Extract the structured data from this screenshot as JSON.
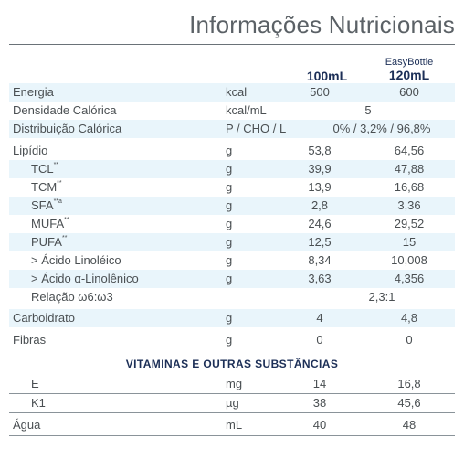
{
  "title": "Informações Nutricionais",
  "columns": {
    "easybottle": "EasyBottle",
    "col1": "100mL",
    "col2": "120mL"
  },
  "rows": [
    {
      "label": "Energia",
      "unit": "kcal",
      "v1": "500",
      "v2": "600"
    },
    {
      "label": "Densidade Calórica",
      "unit": "kcal/mL",
      "span": "5"
    },
    {
      "label": "Distribuição Calórica",
      "unit": "P / CHO / L",
      "span": "0% / 3,2% / 96,8%"
    },
    {
      "label": "Lipídio",
      "unit": "g",
      "v1": "53,8",
      "v2": "64,56"
    },
    {
      "label": "TCL",
      "sup": "**",
      "unit": "g",
      "v1": "39,9",
      "v2": "47,88"
    },
    {
      "label": "TCM",
      "sup": "**",
      "unit": "g",
      "v1": "13,9",
      "v2": "16,68"
    },
    {
      "label": "SFA",
      "sup": "**a",
      "unit": "g",
      "v1": "2,8",
      "v2": "3,36"
    },
    {
      "label": "MUFA",
      "sup": "**",
      "unit": "g",
      "v1": "24,6",
      "v2": "29,52"
    },
    {
      "label": "PUFA",
      "sup": "**",
      "unit": "g",
      "v1": "12,5",
      "v2": "15"
    },
    {
      "label": "> Ácido Linoléico",
      "unit": "g",
      "v1": "8,34",
      "v2": "10,008"
    },
    {
      "label": "> Ácido α-Linolênico",
      "unit": "g",
      "v1": "3,63",
      "v2": "4,356"
    },
    {
      "label": "Relação ω6:ω3",
      "span": "2,3:1"
    },
    {
      "label": "Carboidrato",
      "unit": "g",
      "v1": "4",
      "v2": "4,8"
    },
    {
      "label": "Fibras",
      "unit": "g",
      "v1": "0",
      "v2": "0"
    }
  ],
  "section_title": "VITAMINAS E OUTRAS SUBSTÂNCIAS",
  "vitamins": [
    {
      "label": "E",
      "unit": "mg",
      "v1": "14",
      "v2": "16,8"
    },
    {
      "label": "K1",
      "unit": "µg",
      "v1": "38",
      "v2": "45,6"
    },
    {
      "label": "Água",
      "unit": "mL",
      "v1": "40",
      "v2": "48"
    }
  ]
}
